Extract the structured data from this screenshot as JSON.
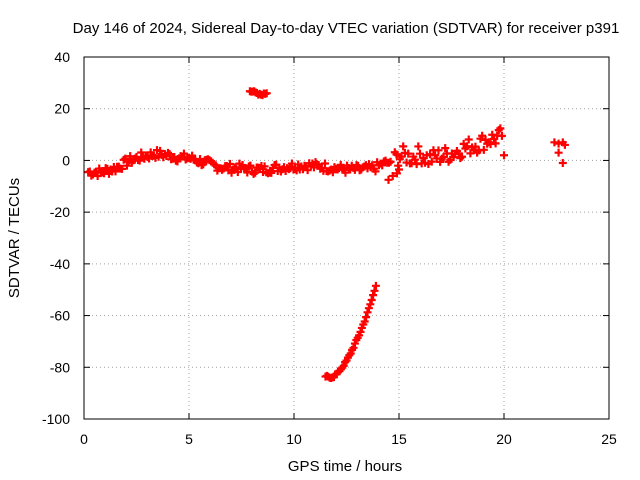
{
  "chart_data": {
    "type": "scatter",
    "title": "Day 146 of 2024, Sidereal Day-to-day VTEC variation (SDTVAR) for receiver p391",
    "xlabel": "GPS time / hours",
    "ylabel": "SDTVAR / TECUs",
    "xlim": [
      0,
      25
    ],
    "ylim": [
      -100,
      40
    ],
    "xticks": [
      0,
      5,
      10,
      15,
      20,
      25
    ],
    "yticks": [
      -100,
      -80,
      -60,
      -40,
      -20,
      0,
      20,
      40
    ],
    "grid": true,
    "legend": "none",
    "marker": "plus",
    "color": "#ff0000",
    "series": [
      {
        "name": "main-band",
        "spread": 1.8,
        "x": [
          0.2,
          0.8,
          1.5,
          2.2,
          2.8,
          3.4,
          4.0,
          4.6,
          5.0,
          5.6,
          6.2,
          6.8,
          7.4,
          8.0,
          8.6,
          9.0,
          9.6,
          10.2,
          10.8,
          11.4,
          12.0,
          12.6,
          13.2,
          13.8,
          14.2,
          14.6
        ],
        "y": [
          -4.5,
          -4.5,
          -3.0,
          0.0,
          1.5,
          2.5,
          2.0,
          1.0,
          1.0,
          -0.5,
          -2.0,
          -3.0,
          -3.0,
          -3.5,
          -3.5,
          -3.0,
          -2.5,
          -2.0,
          -2.0,
          -2.5,
          -3.0,
          -3.5,
          -3.5,
          -3.0,
          -1.5,
          -0.5
        ]
      },
      {
        "name": "late-scatter",
        "spread": 3.5,
        "x": [
          14.8,
          15.2,
          15.6,
          16.0,
          16.4,
          16.8,
          17.2,
          17.6,
          18.0,
          18.4,
          18.8,
          19.2,
          19.6,
          19.9
        ],
        "y": [
          0.5,
          2.0,
          1.0,
          2.5,
          0.5,
          1.5,
          2.0,
          3.0,
          4.5,
          5.5,
          6.5,
          8.0,
          8.5,
          9.5
        ]
      },
      {
        "name": "dip-arc",
        "spread": 0.4,
        "x": [
          11.5,
          11.7,
          11.9,
          12.1,
          12.3,
          12.5,
          12.7,
          12.9,
          13.1,
          13.3,
          13.5,
          13.7,
          13.9
        ],
        "y": [
          -83.5,
          -84.0,
          -83.5,
          -82.0,
          -80.0,
          -77.5,
          -74.5,
          -71.0,
          -67.5,
          -63.5,
          -59.0,
          -54.0,
          -48.5
        ]
      },
      {
        "name": "upper-arc",
        "spread": 0.3,
        "x": [
          7.9,
          8.1,
          8.3,
          8.5,
          8.7
        ],
        "y": [
          27.0,
          26.5,
          25.5,
          25.5,
          26.0
        ]
      },
      {
        "name": "isolated-points",
        "spread": 0.3,
        "x": [
          14.5,
          14.7,
          14.9,
          15.0,
          20.0,
          22.4,
          22.6,
          22.8,
          22.9,
          22.6,
          22.8
        ],
        "y": [
          -7.5,
          -6.0,
          -5.0,
          -3.5,
          2.0,
          7.0,
          6.5,
          7.0,
          6.0,
          3.0,
          -1.0
        ]
      }
    ]
  }
}
